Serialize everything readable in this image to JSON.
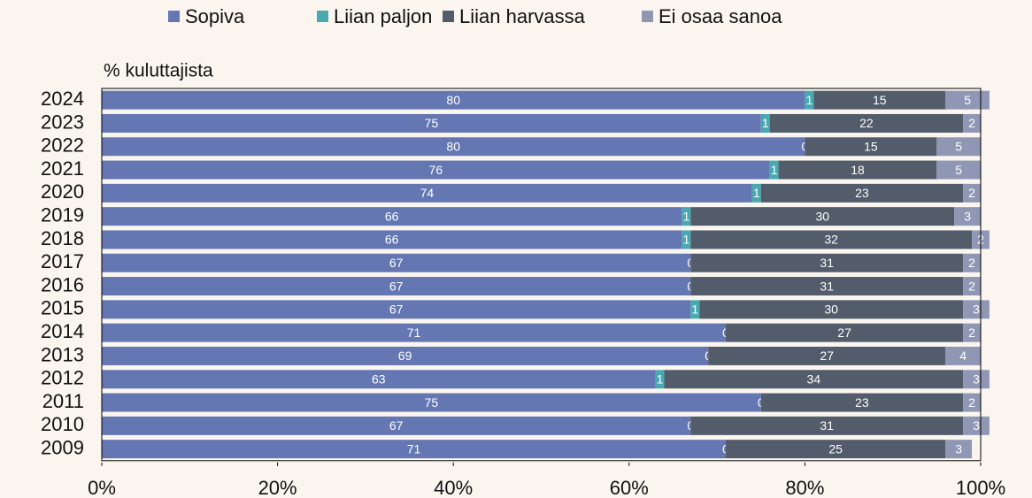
{
  "chart_data": {
    "type": "stacked_barh",
    "axis_label": "% kuluttajista",
    "categories": [
      "2024",
      "2023",
      "2022",
      "2021",
      "2020",
      "2019",
      "2018",
      "2017",
      "2016",
      "2015",
      "2014",
      "2013",
      "2012",
      "2011",
      "2010",
      "2009"
    ],
    "series": [
      {
        "name": "Sopiva",
        "color": "#6577b3",
        "values": [
          80,
          75,
          80,
          76,
          74,
          66,
          66,
          67,
          67,
          67,
          71,
          69,
          63,
          75,
          67,
          71
        ]
      },
      {
        "name": "Liian paljon",
        "color": "#49a9b1",
        "values": [
          1,
          1,
          0,
          1,
          1,
          1,
          1,
          0,
          0,
          1,
          0,
          0,
          1,
          0,
          0,
          0
        ]
      },
      {
        "name": "Liian harvassa",
        "color": "#535c6b",
        "values": [
          15,
          22,
          15,
          18,
          23,
          30,
          32,
          31,
          31,
          30,
          27,
          27,
          34,
          23,
          31,
          25
        ]
      },
      {
        "name": "Ei osaa sanoa",
        "color": "#9097b5",
        "values": [
          5,
          2,
          5,
          5,
          2,
          3,
          2,
          2,
          2,
          3,
          2,
          4,
          3,
          2,
          3,
          3
        ]
      }
    ],
    "xlim": [
      0,
      100
    ],
    "xticks": [
      {
        "value": 0,
        "label": "0%"
      },
      {
        "value": 20,
        "label": "20%"
      },
      {
        "value": 40,
        "label": "40%"
      },
      {
        "value": 60,
        "label": "60%"
      },
      {
        "value": 80,
        "label": "80%"
      },
      {
        "value": 100,
        "label": "100%"
      }
    ]
  }
}
